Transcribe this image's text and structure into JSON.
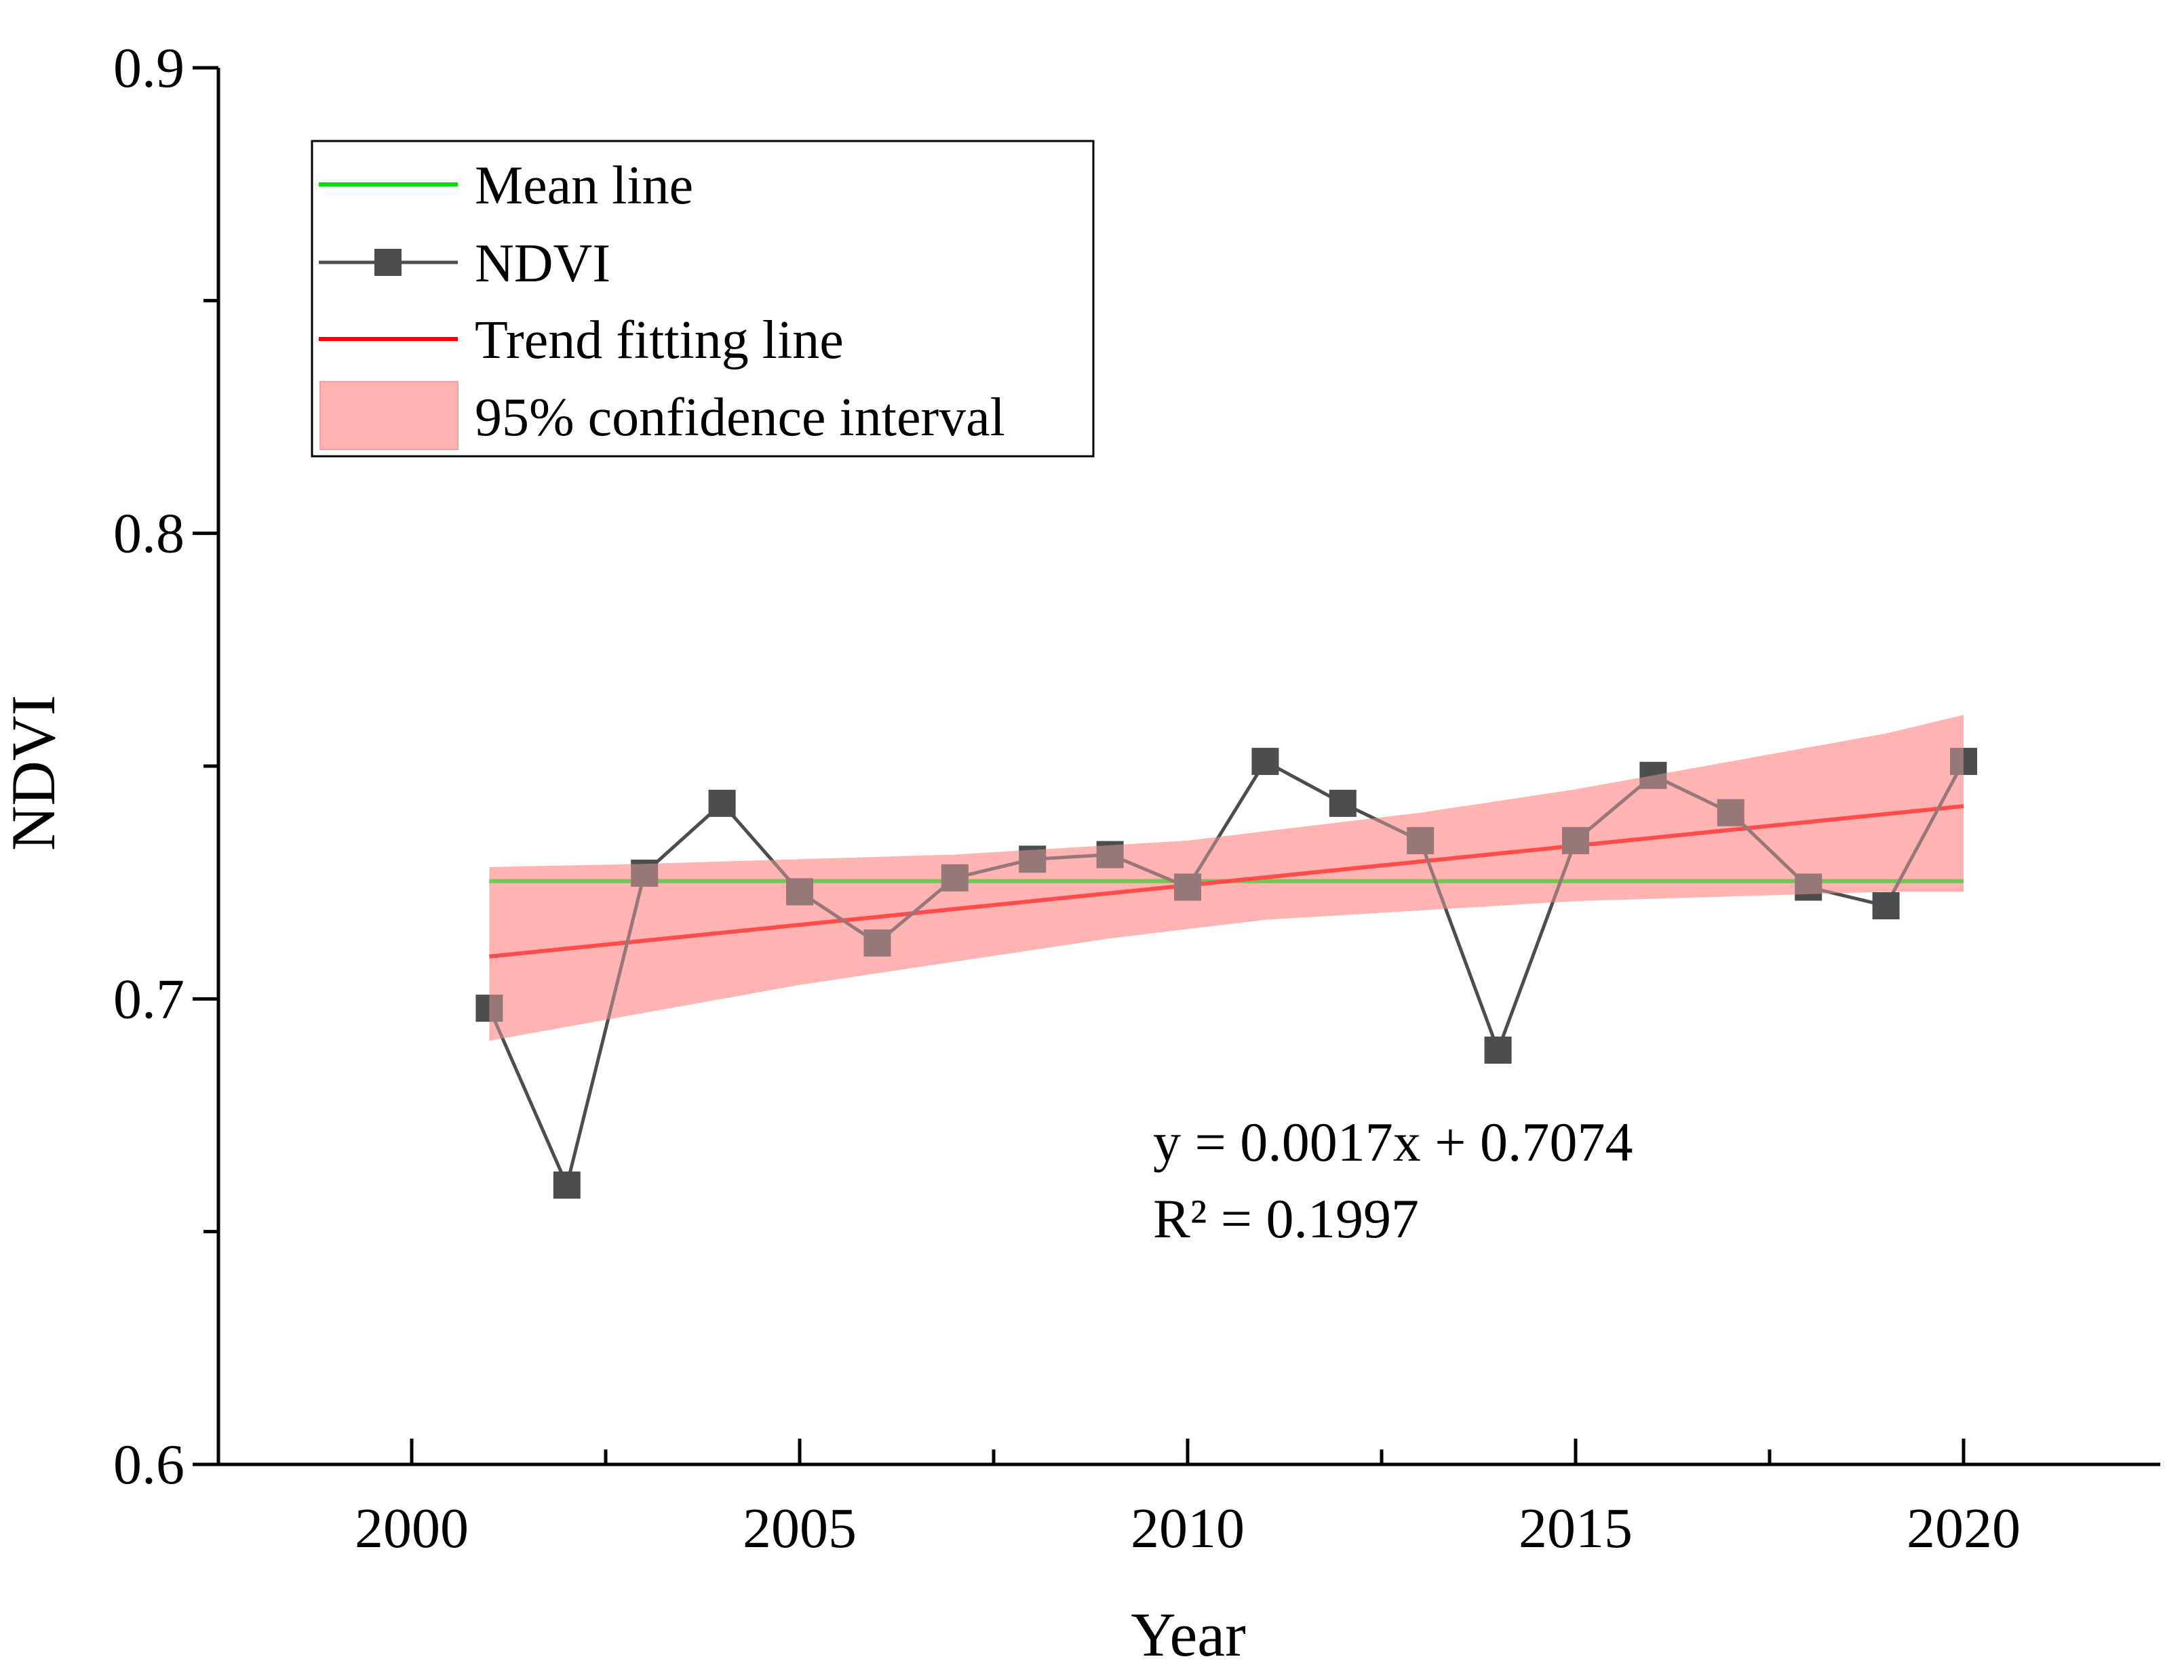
{
  "chart_data": {
    "type": "line",
    "xlabel": "Year",
    "ylabel": "NDVI",
    "xlim": [
      1997.5,
      2022.5
    ],
    "ylim": [
      0.6,
      0.9
    ],
    "x_ticks": [
      2000,
      2005,
      2010,
      2015,
      2020
    ],
    "y_ticks": [
      0.6,
      0.7,
      0.8,
      0.9
    ],
    "y_tick_labels": [
      "0.6",
      "0.7",
      "0.8",
      "0.9"
    ],
    "grid": false,
    "legend": {
      "position": "top-left",
      "entries": [
        "Mean line",
        "NDVI",
        "Trend fitting line",
        "95% confidence interval"
      ]
    },
    "series": [
      {
        "name": "NDVI",
        "color": "#4d4d4d",
        "marker": "square",
        "x": [
          2001,
          2002,
          2003,
          2004,
          2005,
          2006,
          2007,
          2008,
          2009,
          2010,
          2011,
          2012,
          2013,
          2014,
          2015,
          2016,
          2017,
          2018,
          2019,
          2020
        ],
        "values": [
          0.698,
          0.66,
          0.727,
          0.742,
          0.723,
          0.712,
          0.726,
          0.73,
          0.731,
          0.724,
          0.751,
          0.742,
          0.734,
          0.689,
          0.734,
          0.748,
          0.74,
          0.724,
          0.72,
          0.751
        ]
      },
      {
        "name": "Mean line",
        "color": "#00dd00",
        "x": [
          2001,
          2020
        ],
        "values": [
          0.7253,
          0.7253
        ]
      },
      {
        "name": "Trend fitting line",
        "color": "#ff0000",
        "x": [
          2001,
          2020
        ],
        "values": [
          0.7091,
          0.7414
        ]
      },
      {
        "name": "95% confidence interval",
        "color": "#ffb3b3",
        "x": [
          2001,
          2003,
          2005,
          2007,
          2009,
          2010,
          2011,
          2013,
          2015,
          2017,
          2019,
          2020
        ],
        "upper": [
          0.7283,
          0.729,
          0.73,
          0.731,
          0.733,
          0.734,
          0.736,
          0.74,
          0.745,
          0.751,
          0.757,
          0.761
        ],
        "lower": [
          0.691,
          0.697,
          0.703,
          0.708,
          0.713,
          0.715,
          0.717,
          0.719,
          0.721,
          0.722,
          0.723,
          0.723
        ]
      }
    ],
    "annotations": [
      "y = 0.0017x + 0.7074",
      "R² = 0.1997"
    ]
  }
}
